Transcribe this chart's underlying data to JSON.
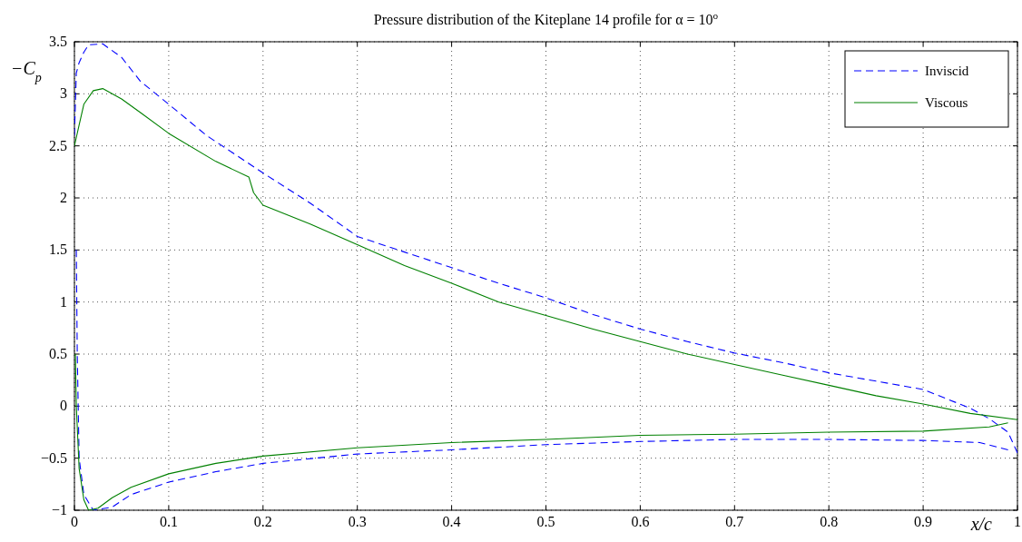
{
  "chart_data": {
    "type": "line",
    "title": "Pressure distribution of the Kiteplane 14 profile for α = 10$^{o}$",
    "xlabel": "x/c",
    "ylabel": "−C$_{p}$",
    "xlim": [
      0,
      1
    ],
    "ylim": [
      -1,
      3.5
    ],
    "xticks": [
      0,
      0.1,
      0.2,
      0.3,
      0.4,
      0.5,
      0.6,
      0.7,
      0.8,
      0.9,
      1
    ],
    "yticks": [
      -1,
      -0.5,
      0,
      0.5,
      1,
      1.5,
      2,
      2.5,
      3,
      3.5
    ],
    "grid": true,
    "legend": "top right",
    "series": [
      {
        "name": "Inviscid",
        "color": "#0000ff",
        "line_style": "dashed",
        "x": [
          0,
          0.002,
          0.005,
          0.01,
          0.015,
          0.03,
          0.05,
          0.07,
          0.1,
          0.14,
          0.2,
          0.25,
          0.3,
          0.35,
          0.4,
          0.45,
          0.5,
          0.55,
          0.6,
          0.65,
          0.7,
          0.75,
          0.8,
          0.85,
          0.9,
          0.95,
          0.97,
          0.99,
          1
        ],
        "values": [
          2.6,
          3.2,
          3.3,
          3.4,
          3.47,
          3.48,
          3.35,
          3.12,
          2.9,
          2.6,
          2.24,
          1.95,
          1.63,
          1.48,
          1.33,
          1.18,
          1.04,
          0.88,
          0.74,
          0.62,
          0.51,
          0.42,
          0.32,
          0.24,
          0.16,
          -0.02,
          -0.12,
          -0.25,
          -0.45
        ]
      },
      {
        "color": "#0000ff",
        "line_style": "dashed",
        "x": [
          0.002,
          0.003,
          0.005,
          0.01,
          0.02,
          0.04,
          0.06,
          0.1,
          0.15,
          0.2,
          0.3,
          0.4,
          0.5,
          0.6,
          0.7,
          0.8,
          0.9,
          0.96,
          0.99
        ],
        "values": [
          1.5,
          0.5,
          -0.5,
          -0.85,
          -1,
          -0.97,
          -0.85,
          -0.73,
          -0.63,
          -0.55,
          -0.46,
          -0.42,
          -0.37,
          -0.34,
          -0.32,
          -0.32,
          -0.33,
          -0.35,
          -0.42
        ]
      },
      {
        "name": "Viscous",
        "color": "#008000",
        "line_style": "solid",
        "x": [
          0,
          0.005,
          0.01,
          0.02,
          0.03,
          0.05,
          0.07,
          0.1,
          0.15,
          0.185,
          0.19,
          0.2,
          0.25,
          0.3,
          0.35,
          0.4,
          0.45,
          0.5,
          0.55,
          0.6,
          0.65,
          0.7,
          0.75,
          0.8,
          0.85,
          0.9,
          0.95,
          1
        ],
        "values": [
          2.5,
          2.7,
          2.9,
          3.03,
          3.05,
          2.95,
          2.82,
          2.62,
          2.35,
          2.2,
          2.05,
          1.93,
          1.75,
          1.55,
          1.35,
          1.18,
          1.0,
          0.87,
          0.74,
          0.62,
          0.5,
          0.4,
          0.3,
          0.2,
          0.1,
          0.02,
          -0.07,
          -0.13
        ]
      },
      {
        "color": "#008000",
        "line_style": "solid",
        "x": [
          0.001,
          0.002,
          0.005,
          0.01,
          0.015,
          0.025,
          0.04,
          0.06,
          0.1,
          0.15,
          0.2,
          0.3,
          0.4,
          0.5,
          0.6,
          0.7,
          0.8,
          0.9,
          0.97,
          0.99
        ],
        "values": [
          0.5,
          0,
          -0.6,
          -0.9,
          -1,
          -0.98,
          -0.88,
          -0.78,
          -0.65,
          -0.55,
          -0.48,
          -0.4,
          -0.35,
          -0.32,
          -0.28,
          -0.27,
          -0.25,
          -0.24,
          -0.2,
          -0.16
        ]
      }
    ]
  }
}
